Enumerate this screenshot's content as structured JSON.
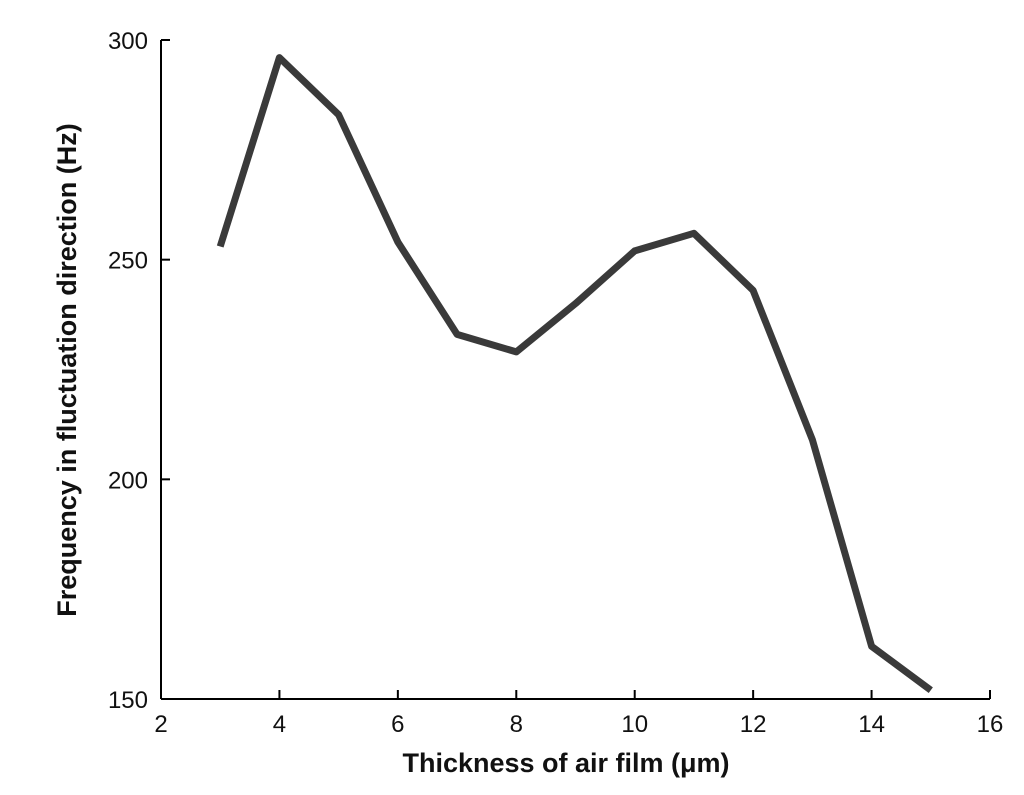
{
  "chart_data": {
    "type": "line",
    "title": "",
    "xlabel": "Thickness of air film (μm)",
    "ylabel": "Frequency in fluctuation direction (Hz)",
    "xlim": [
      2,
      16
    ],
    "ylim": [
      150,
      300
    ],
    "xticks": [
      2,
      4,
      6,
      8,
      10,
      12,
      14,
      16
    ],
    "yticks": [
      150,
      200,
      250,
      300
    ],
    "grid": false,
    "legend": "none",
    "line_color": "#3a3a3a",
    "series": [
      {
        "x": [
          3,
          4,
          5,
          6,
          7,
          8,
          9,
          10,
          11,
          12,
          13,
          14,
          15
        ],
        "y": [
          253,
          296,
          283,
          254,
          233,
          229,
          240,
          252,
          256,
          243,
          209,
          162,
          152
        ]
      }
    ]
  }
}
